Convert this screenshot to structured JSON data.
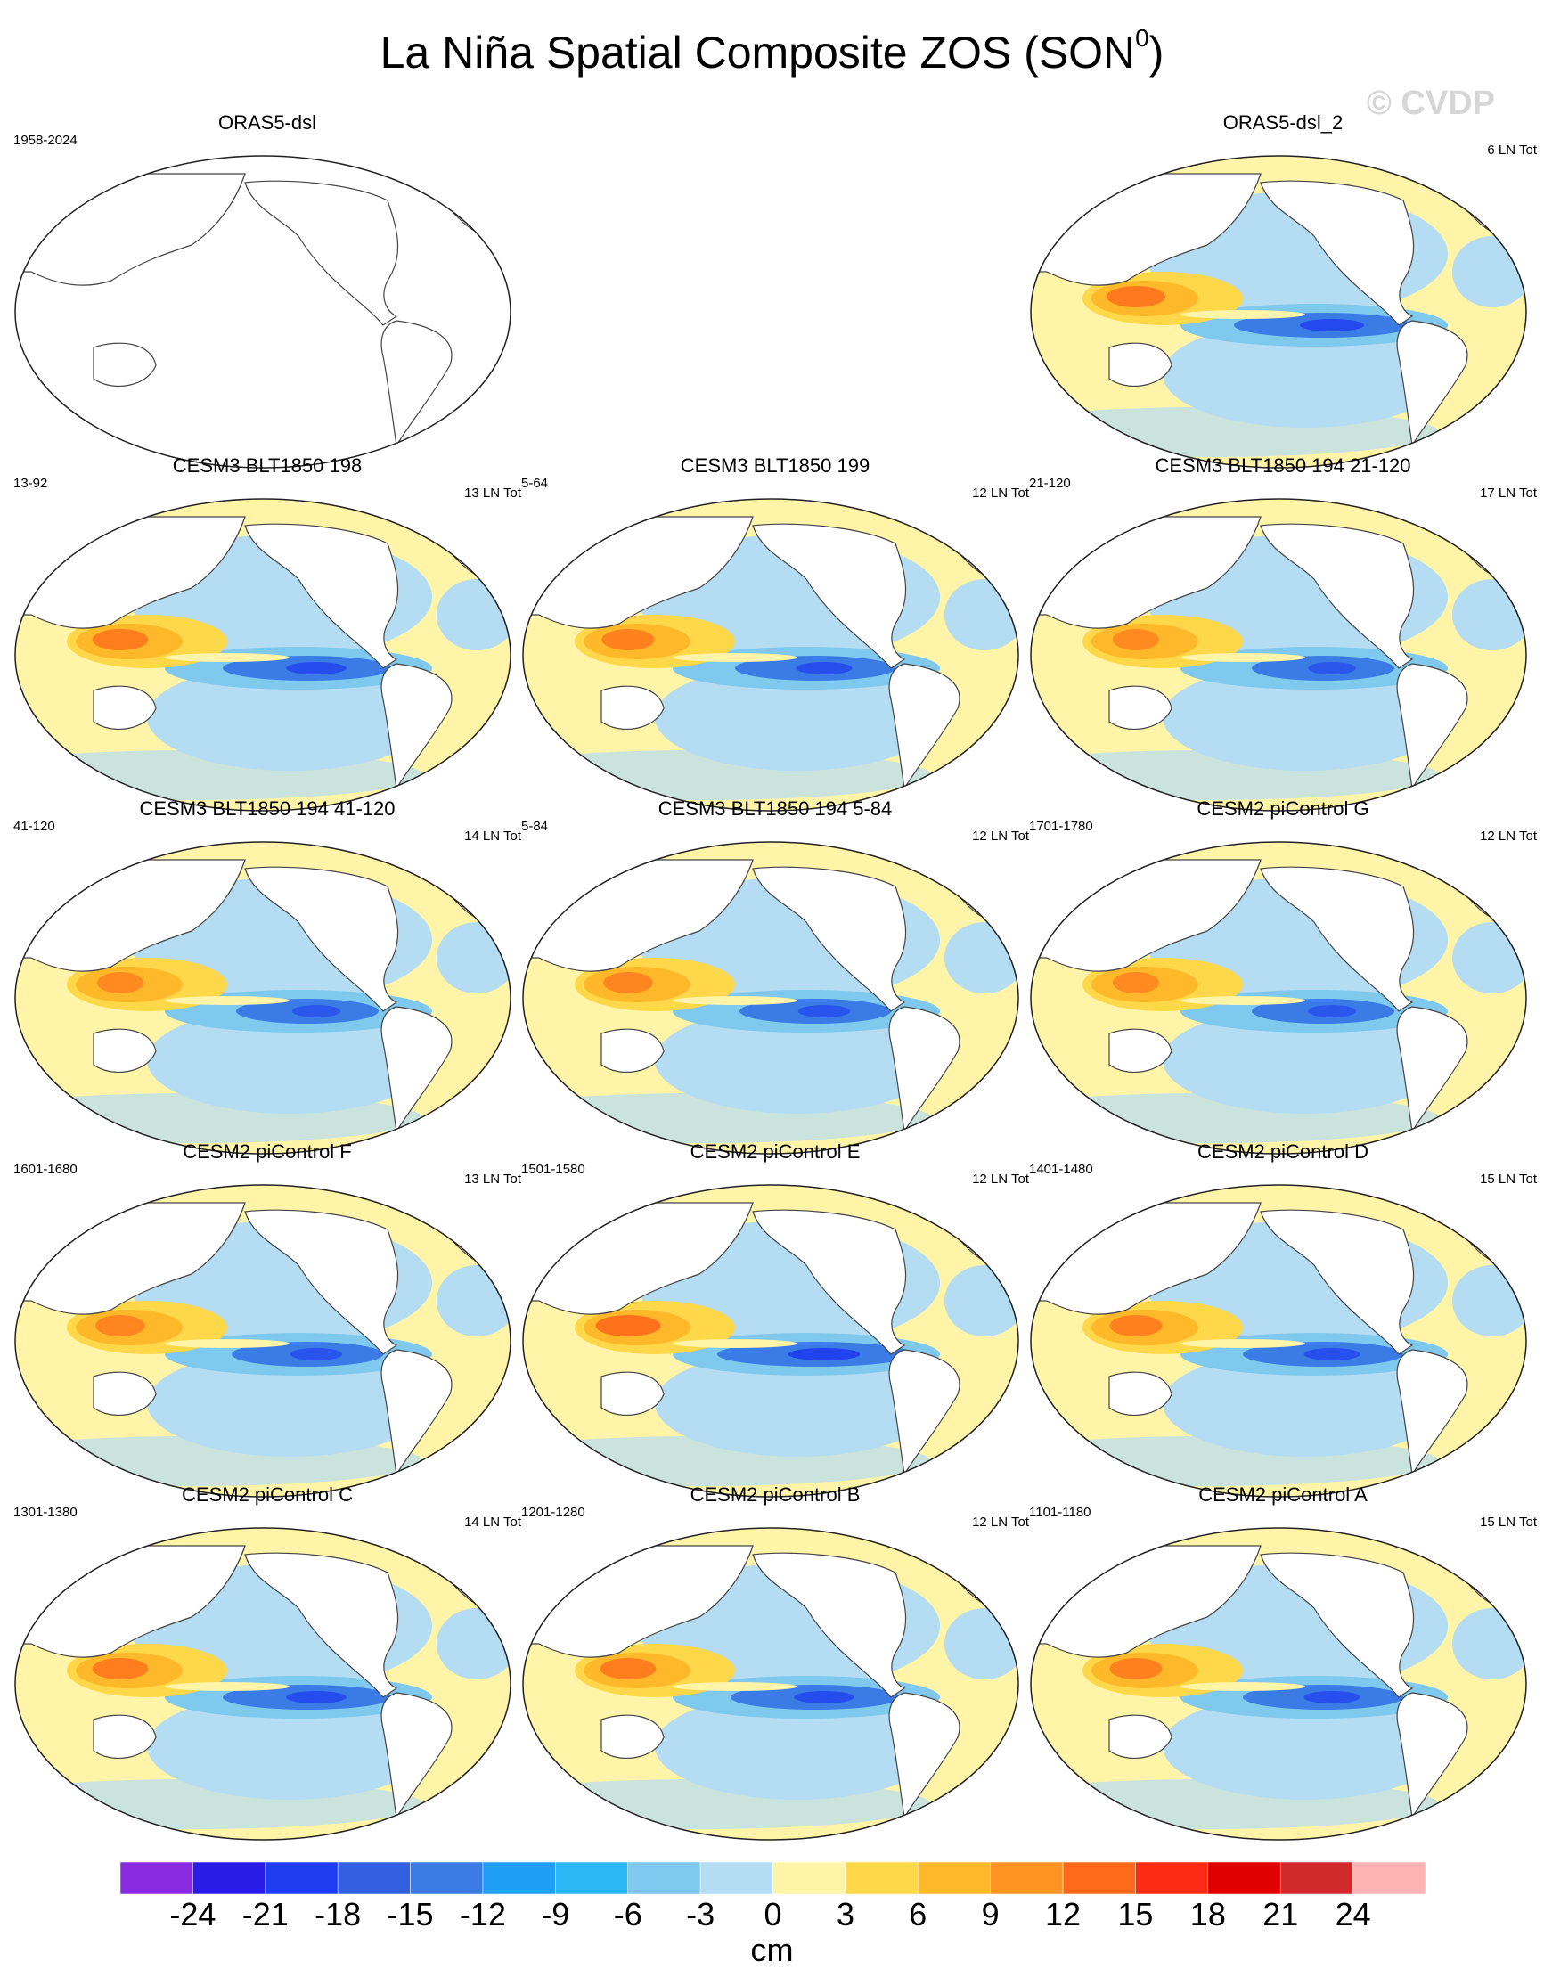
{
  "title": "La Niña Spatial Composite ZOS (SON",
  "title_sup": "0",
  "title_close": ")",
  "watermark": "© CVDP",
  "colorbar": {
    "unit": "cm",
    "ticks": [
      "-24",
      "-21",
      "-18",
      "-15",
      "-12",
      "-9",
      "-6",
      "-3",
      "0",
      "3",
      "6",
      "9",
      "12",
      "15",
      "18",
      "21",
      "24"
    ],
    "colors": [
      "#8a2be2",
      "#2b1be6",
      "#1f3df0",
      "#3260e0",
      "#3a7be6",
      "#1e9ef5",
      "#2cb8f4",
      "#7fc8ee",
      "#b4dcf2",
      "#fff4a8",
      "#ffd84a",
      "#ffb829",
      "#ff9422",
      "#ff6a1a",
      "#ff2a14",
      "#e00000",
      "#d02a2a",
      "#ffb3b3"
    ]
  },
  "panels": [
    {
      "title": "ORAS5-dsl",
      "left": "1958-2024",
      "right": "",
      "empty": true
    },
    {
      "title": "ORAS5-dsl_2",
      "left": "",
      "right": "6 LN Tot",
      "empty": false,
      "strength": 0.8
    },
    {
      "title": "CESM3 BLT1850 198",
      "left": "13-92",
      "right": "13 LN Tot",
      "empty": false,
      "strength": 0.75
    },
    {
      "title": "CESM3 BLT1850 199",
      "left": "5-64",
      "right": "12 LN Tot",
      "empty": false,
      "strength": 0.7
    },
    {
      "title": "CESM3 BLT1850 194 21-120",
      "left": "21-120",
      "right": "17 LN Tot",
      "empty": false,
      "strength": 0.6
    },
    {
      "title": "CESM3 BLT1850 194 41-120",
      "left": "41-120",
      "right": "14 LN Tot",
      "empty": false,
      "strength": 0.6
    },
    {
      "title": "CESM3 BLT1850 194 5-84",
      "left": "5-84",
      "right": "12 LN Tot",
      "empty": false,
      "strength": 0.65
    },
    {
      "title": "CESM2 piControl G",
      "left": "1701-1780",
      "right": "12 LN Tot",
      "empty": false,
      "strength": 0.6
    },
    {
      "title": "CESM2 piControl F",
      "left": "1601-1680",
      "right": "13 LN Tot",
      "empty": false,
      "strength": 0.65
    },
    {
      "title": "CESM2 piControl E",
      "left": "1501-1580",
      "right": "12 LN Tot",
      "empty": false,
      "strength": 0.9
    },
    {
      "title": "CESM2 piControl D",
      "left": "1401-1480",
      "right": "15 LN Tot",
      "empty": false,
      "strength": 0.7
    },
    {
      "title": "CESM2 piControl C",
      "left": "1301-1380",
      "right": "14 LN Tot",
      "empty": false,
      "strength": 0.75
    },
    {
      "title": "CESM2 piControl B",
      "left": "1201-1280",
      "right": "12 LN Tot",
      "empty": false,
      "strength": 0.75
    },
    {
      "title": "CESM2 piControl A",
      "left": "1101-1180",
      "right": "15 LN Tot",
      "empty": false,
      "strength": 0.7
    }
  ]
}
